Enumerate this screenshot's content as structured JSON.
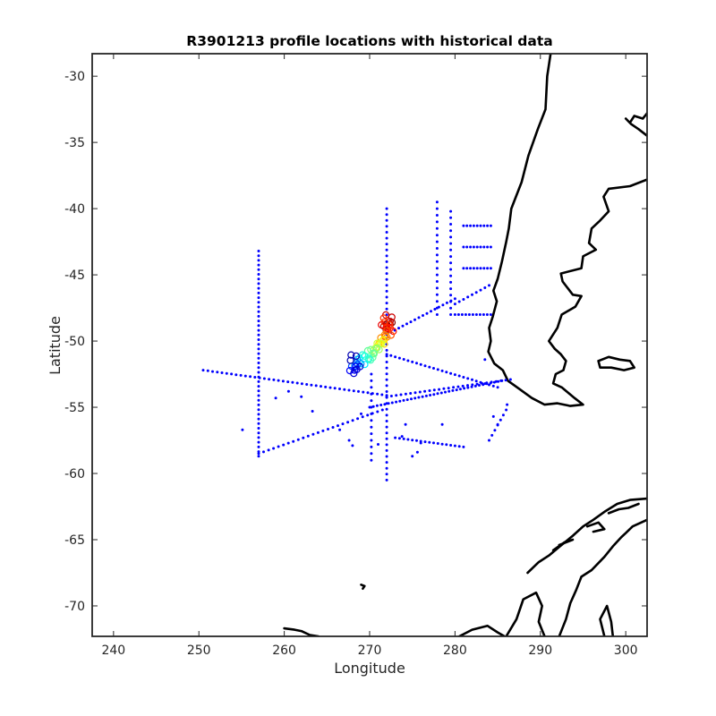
{
  "chart_data": {
    "type": "scatter",
    "title": "R3901213 profile locations with historical data",
    "xlabel": "Longitude",
    "ylabel": "Latitude",
    "xlim": [
      237.5,
      302.5
    ],
    "ylim": [
      -72.3,
      -28.3
    ],
    "xticks": [
      240,
      250,
      260,
      270,
      280,
      290,
      300
    ],
    "yticks": [
      -30,
      -35,
      -40,
      -45,
      -50,
      -55,
      -60,
      -65,
      -70
    ],
    "grid": false,
    "legend": "none",
    "colors": {
      "historical": "#0000ff",
      "coastline": "#000000",
      "float_track_colormap": [
        "#00008f",
        "#0000ff",
        "#00ffff",
        "#7fff7f",
        "#ffff00",
        "#ff0000",
        "#800000"
      ]
    },
    "series": [
      {
        "lines": [
          {
            "lon": 257,
            "lat_from": -43.2,
            "lat_to": -58.7,
            "step": 0.35
          },
          {
            "lon": 272,
            "lat_from": -40.0,
            "lat_to": -60.5,
            "step": 0.45
          },
          {
            "lon": 277.9,
            "lat_from": -39.5,
            "lat_to": -48.0,
            "step": 0.5
          },
          {
            "lon": 279.5,
            "lat_from": -40.2,
            "lat_to": -48.0,
            "step": 0.5
          },
          {
            "lon": 270.2,
            "lat_from": -52.5,
            "lat_to": -59.0,
            "step": 0.5
          },
          {
            "lon_from": 281.0,
            "lon_to": 284.2,
            "lat": -41.3,
            "step": 0.4
          },
          {
            "lon_from": 281.0,
            "lon_to": 284.2,
            "lat": -42.9,
            "step": 0.4
          },
          {
            "lon_from": 281.0,
            "lon_to": 284.2,
            "lat": -44.5,
            "step": 0.4
          },
          {
            "lon_from": 280.0,
            "lon_to": 284.2,
            "lat": -48.0,
            "step": 0.4
          },
          {
            "lon_from": 250.5,
            "lon_to": 272.0,
            "lat_from": -52.2,
            "lat_to": -54.1,
            "step": 0.55
          },
          {
            "lon_from": 270.0,
            "lon_to": 285.5,
            "lat_from": -55.0,
            "lat_to": -53.0,
            "step": 0.45
          },
          {
            "lon_from": 257.0,
            "lon_to": 271.5,
            "lat_from": -58.5,
            "lat_to": -55.2,
            "step": 0.6
          },
          {
            "lon_from": 272.0,
            "lon_to": 285.0,
            "lat_from": -51.0,
            "lat_to": -53.5,
            "step": 0.5
          },
          {
            "lon_from": 272.0,
            "lon_to": 280.0,
            "lat_from": -49.5,
            "lat_to": -46.8,
            "step": 0.5
          },
          {
            "lon_from": 280.0,
            "lon_to": 284.0,
            "lat_from": -47.2,
            "lat_to": -45.8,
            "step": 0.5
          },
          {
            "lon_from": 284.0,
            "lon_to": 286.0,
            "lat_from": -57.5,
            "lat_to": -55.2,
            "step": 0.5
          },
          {
            "lon_from": 273.0,
            "lon_to": 281.0,
            "lat_from": -57.3,
            "lat_to": -58.0,
            "step": 0.5
          },
          {
            "lon_from": 272.0,
            "lon_to": 286.5,
            "lat_from": -54.2,
            "lat_to": -52.9,
            "step": 0.55
          }
        ],
        "points": [
          [
            255.1,
            -56.7
          ],
          [
            259.0,
            -54.3
          ],
          [
            260.5,
            -53.8
          ],
          [
            262.0,
            -54.2
          ],
          [
            263.3,
            -55.3
          ],
          [
            266.5,
            -56.7
          ],
          [
            267.6,
            -57.5
          ],
          [
            268.0,
            -57.9
          ],
          [
            269.0,
            -55.5
          ],
          [
            275.6,
            -58.4
          ],
          [
            275.0,
            -58.7
          ],
          [
            278.5,
            -56.3
          ],
          [
            274.2,
            -56.3
          ],
          [
            283.5,
            -51.4
          ],
          [
            284.5,
            -55.7
          ],
          [
            285.0,
            -56.3
          ],
          [
            286.1,
            -54.8
          ],
          [
            271.0,
            -57.8
          ],
          [
            273.8,
            -57.2
          ],
          [
            276.0,
            -57.7
          ]
        ]
      },
      {
        "name": "R3901213",
        "track": [
          {
            "lon": 272.2,
            "lat": -48.6,
            "c": 1.0
          },
          {
            "lon": 272.0,
            "lat": -49.0,
            "c": 0.95
          },
          {
            "lon": 272.3,
            "lat": -48.3,
            "c": 0.9
          },
          {
            "lon": 271.8,
            "lat": -48.8,
            "c": 0.86
          },
          {
            "lon": 272.4,
            "lat": -49.2,
            "c": 0.82
          },
          {
            "lon": 271.9,
            "lat": -48.5,
            "c": 0.8
          },
          {
            "lon": 272.1,
            "lat": -49.4,
            "c": 0.78
          },
          {
            "lon": 271.7,
            "lat": -49.8,
            "c": 0.74
          },
          {
            "lon": 271.5,
            "lat": -50.0,
            "c": 0.7
          },
          {
            "lon": 271.2,
            "lat": -50.2,
            "c": 0.65
          },
          {
            "lon": 271.0,
            "lat": -50.4,
            "c": 0.6
          },
          {
            "lon": 270.7,
            "lat": -50.6,
            "c": 0.55
          },
          {
            "lon": 270.5,
            "lat": -50.8,
            "c": 0.5
          },
          {
            "lon": 270.2,
            "lat": -51.0,
            "c": 0.46
          },
          {
            "lon": 269.8,
            "lat": -51.2,
            "c": 0.42
          },
          {
            "lon": 269.5,
            "lat": -51.3,
            "c": 0.38
          },
          {
            "lon": 269.0,
            "lat": -51.5,
            "c": 0.32
          },
          {
            "lon": 268.6,
            "lat": -51.6,
            "c": 0.27
          },
          {
            "lon": 268.3,
            "lat": -51.9,
            "c": 0.22
          },
          {
            "lon": 268.1,
            "lat": -52.0,
            "c": 0.16
          },
          {
            "lon": 268.5,
            "lat": -52.2,
            "c": 0.1
          },
          {
            "lon": 268.0,
            "lat": -51.3,
            "c": 0.05
          }
        ]
      }
    ],
    "coastlines": [
      [
        [
          291.2,
          -28.3
        ],
        [
          290.8,
          -30.0
        ],
        [
          290.6,
          -32.5
        ],
        [
          289.7,
          -34.0
        ],
        [
          288.6,
          -36.0
        ],
        [
          287.8,
          -38.0
        ],
        [
          286.6,
          -40.0
        ],
        [
          286.3,
          -41.5
        ],
        [
          286.0,
          -42.5
        ],
        [
          285.5,
          -44.0
        ],
        [
          285.0,
          -45.3
        ],
        [
          284.5,
          -46.2
        ],
        [
          284.9,
          -47.0
        ],
        [
          284.4,
          -48.2
        ],
        [
          284.0,
          -49.0
        ],
        [
          284.2,
          -50.0
        ],
        [
          283.9,
          -50.8
        ],
        [
          284.6,
          -51.7
        ],
        [
          285.6,
          -52.2
        ],
        [
          286.2,
          -53.0
        ],
        [
          287.5,
          -53.6
        ],
        [
          289.0,
          -54.3
        ],
        [
          290.5,
          -54.8
        ],
        [
          292.0,
          -54.7
        ],
        [
          293.5,
          -54.9
        ],
        [
          295.0,
          -54.8
        ],
        [
          294.0,
          -54.3
        ],
        [
          292.5,
          -53.5
        ],
        [
          291.5,
          -53.2
        ],
        [
          291.8,
          -52.5
        ],
        [
          292.7,
          -52.2
        ],
        [
          293.0,
          -51.5
        ],
        [
          292.4,
          -51.0
        ],
        [
          291.7,
          -50.6
        ],
        [
          291.0,
          -50.0
        ],
        [
          292.0,
          -49.0
        ],
        [
          292.5,
          -48.0
        ],
        [
          294.1,
          -47.4
        ],
        [
          294.8,
          -46.6
        ],
        [
          293.8,
          -46.5
        ],
        [
          292.6,
          -45.5
        ],
        [
          292.4,
          -44.9
        ],
        [
          294.8,
          -44.5
        ],
        [
          295.0,
          -43.6
        ],
        [
          296.5,
          -43.1
        ],
        [
          295.7,
          -42.6
        ],
        [
          296.0,
          -41.5
        ],
        [
          297.0,
          -40.9
        ],
        [
          298.0,
          -40.2
        ],
        [
          297.4,
          -39.1
        ],
        [
          298.0,
          -38.5
        ],
        [
          300.5,
          -38.3
        ],
        [
          302.5,
          -37.8
        ]
      ],
      [
        [
          302.5,
          -34.5
        ],
        [
          301.5,
          -34.0
        ],
        [
          300.6,
          -33.6
        ],
        [
          300.0,
          -33.2
        ]
      ],
      [
        [
          300.5,
          -33.5
        ],
        [
          301.0,
          -33.0
        ],
        [
          302.0,
          -33.2
        ],
        [
          302.5,
          -32.8
        ]
      ],
      [
        [
          296.8,
          -51.5
        ],
        [
          298.0,
          -51.2
        ],
        [
          299.3,
          -51.4
        ],
        [
          300.5,
          -51.5
        ],
        [
          301.0,
          -52.0
        ],
        [
          299.8,
          -52.2
        ],
        [
          298.3,
          -52.0
        ],
        [
          297.0,
          -52.0
        ],
        [
          296.8,
          -51.5
        ]
      ],
      [
        [
          280.5,
          -72.3
        ],
        [
          282.0,
          -71.8
        ],
        [
          283.8,
          -71.5
        ],
        [
          285.0,
          -72.0
        ],
        [
          285.8,
          -72.3
        ]
      ],
      [
        [
          286.0,
          -72.3
        ],
        [
          287.2,
          -71.0
        ],
        [
          288.0,
          -69.5
        ],
        [
          289.5,
          -69.0
        ],
        [
          290.2,
          -70.0
        ],
        [
          289.8,
          -71.2
        ],
        [
          290.5,
          -72.3
        ]
      ],
      [
        [
          292.2,
          -72.3
        ],
        [
          293.0,
          -71.0
        ],
        [
          293.5,
          -69.8
        ],
        [
          294.2,
          -68.8
        ],
        [
          294.8,
          -67.8
        ],
        [
          296.0,
          -67.3
        ],
        [
          297.5,
          -66.3
        ],
        [
          298.5,
          -65.5
        ],
        [
          299.5,
          -64.8
        ],
        [
          300.0,
          -64.5
        ],
        [
          300.8,
          -64.0
        ],
        [
          302.5,
          -63.5
        ]
      ],
      [
        [
          288.5,
          -67.5
        ],
        [
          289.8,
          -66.7
        ],
        [
          291.0,
          -66.2
        ],
        [
          292.3,
          -65.5
        ],
        [
          293.8,
          -64.7
        ],
        [
          295.0,
          -64.0
        ],
        [
          296.2,
          -63.5
        ],
        [
          297.5,
          -62.9
        ],
        [
          299.0,
          -62.3
        ],
        [
          300.5,
          -62.0
        ],
        [
          302.5,
          -61.9
        ]
      ],
      [
        [
          291.5,
          -65.8
        ],
        [
          292.8,
          -65.2
        ],
        [
          293.8,
          -65.0
        ],
        [
          292.2,
          -65.4
        ]
      ],
      [
        [
          295.5,
          -64.0
        ],
        [
          296.8,
          -63.7
        ],
        [
          297.5,
          -64.2
        ],
        [
          296.2,
          -64.4
        ]
      ],
      [
        [
          298.0,
          -63.0
        ],
        [
          299.2,
          -62.7
        ],
        [
          300.3,
          -62.6
        ],
        [
          301.5,
          -62.3
        ]
      ],
      [
        [
          297.5,
          -72.3
        ],
        [
          297.0,
          -71.0
        ],
        [
          297.8,
          -70.0
        ],
        [
          298.3,
          -71.2
        ],
        [
          298.5,
          -72.3
        ]
      ],
      [
        [
          260.0,
          -71.7
        ],
        [
          261.2,
          -71.8
        ],
        [
          262.0,
          -71.9
        ],
        [
          263.0,
          -72.2
        ],
        [
          264.0,
          -72.3
        ]
      ],
      [
        [
          269.0,
          -68.4
        ],
        [
          269.4,
          -68.5
        ],
        [
          269.2,
          -68.7
        ]
      ]
    ]
  }
}
